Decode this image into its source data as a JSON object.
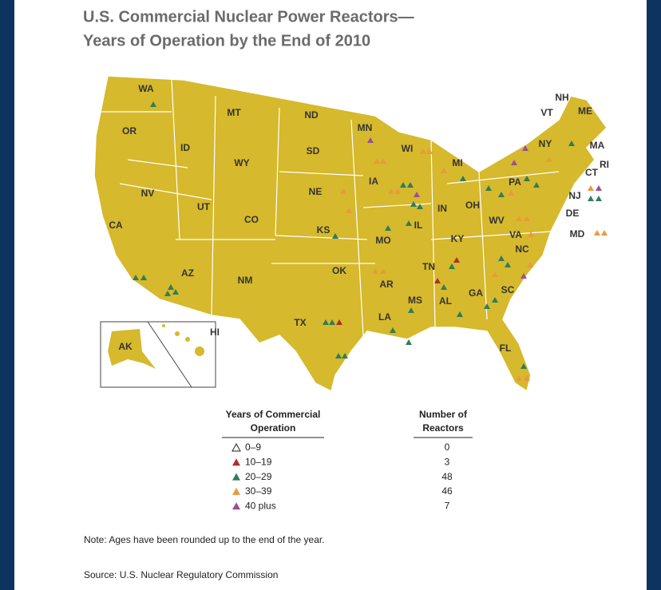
{
  "title": [
    "U.S. Commercial Nuclear Power Reactors—",
    "Years of Operation by the End of 2010"
  ],
  "states": [
    "WA",
    "OR",
    "CA",
    "NV",
    "ID",
    "MT",
    "WY",
    "UT",
    "CO",
    "AZ",
    "NM",
    "ND",
    "SD",
    "NE",
    "KS",
    "OK",
    "TX",
    "MN",
    "IA",
    "MO",
    "AR",
    "LA",
    "WI",
    "IL",
    "MI",
    "IN",
    "OH",
    "KY",
    "TN",
    "MS",
    "AL",
    "GA",
    "FL",
    "SC",
    "NC",
    "VA",
    "WV",
    "PA",
    "NY",
    "VT",
    "NH",
    "ME",
    "MA",
    "RI",
    "CT",
    "NJ",
    "DE",
    "MD",
    "AK",
    "HI"
  ],
  "legend": {
    "age_header": [
      "Years of Commercial",
      "Operation"
    ],
    "count_header": [
      "Number of",
      "Reactors"
    ],
    "rows": [
      {
        "label": "0–9",
        "count": "0",
        "color": "none"
      },
      {
        "label": "10–19",
        "count": "3",
        "color": "#b02e2a"
      },
      {
        "label": "20–29",
        "count": "48",
        "color": "#2f7d5b"
      },
      {
        "label": "30–39",
        "count": "46",
        "color": "#e89a3c"
      },
      {
        "label": "40 plus",
        "count": "7",
        "color": "#9b4f96"
      }
    ]
  },
  "note": "Note: Ages have been rounded up to the end of the year.",
  "source": "Source: U.S. Nuclear Regulatory Commission"
}
